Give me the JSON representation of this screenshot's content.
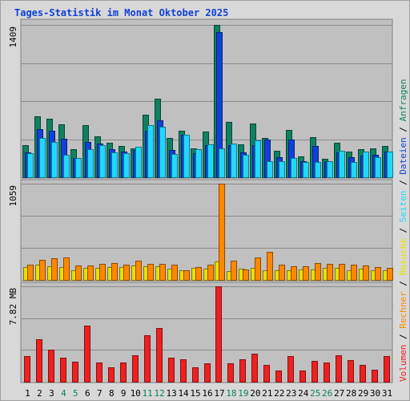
{
  "title": "Tages-Statistik im Monat Oktober 2025",
  "legend": {
    "items": [
      {
        "label": "Volumen",
        "color": "#ee2020"
      },
      {
        "label": "Rechner",
        "color": "#ff8800"
      },
      {
        "label": "Besuche",
        "color": "#e8e000"
      },
      {
        "label": "Seiten",
        "color": "#20d8ff"
      },
      {
        "label": "Dateien",
        "color": "#1040d8"
      },
      {
        "label": "Anfragen",
        "color": "#108060"
      }
    ],
    "separator": " / "
  },
  "chart_data": [
    {
      "type": "bar",
      "title": "Tages-Statistik im Monat Oktober 2025",
      "max_label": "1409",
      "ylim": [
        0,
        1409
      ],
      "categories": [
        "1",
        "2",
        "3",
        "4",
        "5",
        "6",
        "7",
        "8",
        "9",
        "10",
        "11",
        "12",
        "13",
        "14",
        "15",
        "16",
        "17",
        "18",
        "19",
        "20",
        "21",
        "22",
        "23",
        "24",
        "25",
        "26",
        "27",
        "28",
        "29",
        "30",
        "31"
      ],
      "weekend_days": [
        "4",
        "5",
        "11",
        "12",
        "18",
        "19",
        "25",
        "26"
      ],
      "series": [
        {
          "name": "Anfragen",
          "color": "#108060",
          "values": [
            300,
            560,
            545,
            490,
            260,
            485,
            375,
            320,
            290,
            265,
            575,
            725,
            360,
            430,
            265,
            420,
            1409,
            510,
            305,
            500,
            360,
            245,
            435,
            195,
            370,
            170,
            320,
            235,
            260,
            270,
            290
          ]
        },
        {
          "name": "Dateien",
          "color": "#1040d8",
          "values": [
            230,
            445,
            430,
            355,
            180,
            325,
            310,
            260,
            240,
            250,
            430,
            530,
            255,
            390,
            225,
            300,
            1340,
            300,
            230,
            300,
            350,
            185,
            350,
            150,
            290,
            150,
            230,
            185,
            200,
            205,
            235
          ]
        },
        {
          "name": "Seiten",
          "color": "#20d8ff",
          "values": [
            225,
            365,
            330,
            210,
            175,
            260,
            300,
            230,
            225,
            280,
            485,
            465,
            215,
            390,
            260,
            305,
            270,
            310,
            205,
            340,
            150,
            145,
            175,
            140,
            140,
            145,
            245,
            140,
            240,
            185,
            235
          ]
        }
      ]
    },
    {
      "type": "bar",
      "max_label": "1059",
      "ylim": [
        0,
        1059
      ],
      "categories": [
        "1",
        "2",
        "3",
        "4",
        "5",
        "6",
        "7",
        "8",
        "9",
        "10",
        "11",
        "12",
        "13",
        "14",
        "15",
        "16",
        "17",
        "18",
        "19",
        "20",
        "21",
        "22",
        "23",
        "24",
        "25",
        "26",
        "27",
        "28",
        "29",
        "30",
        "31"
      ],
      "series": [
        {
          "name": "Besuche",
          "color": "#e8e000",
          "values": [
            140,
            170,
            150,
            140,
            105,
            130,
            130,
            145,
            145,
            160,
            150,
            150,
            125,
            110,
            130,
            120,
            200,
            100,
            120,
            130,
            110,
            110,
            110,
            115,
            115,
            130,
            130,
            110,
            125,
            110,
            110
          ]
        },
        {
          "name": "Rechner",
          "color": "#ff8800",
          "values": [
            165,
            225,
            240,
            245,
            160,
            160,
            180,
            185,
            170,
            215,
            180,
            180,
            165,
            110,
            145,
            165,
            1059,
            210,
            115,
            245,
            305,
            165,
            150,
            150,
            185,
            180,
            180,
            165,
            155,
            140,
            130
          ]
        }
      ]
    },
    {
      "type": "bar",
      "max_label": "7.82 MB",
      "ylim": [
        0,
        7.82
      ],
      "categories": [
        "1",
        "2",
        "3",
        "4",
        "5",
        "6",
        "7",
        "8",
        "9",
        "10",
        "11",
        "12",
        "13",
        "14",
        "15",
        "16",
        "17",
        "18",
        "19",
        "20",
        "21",
        "22",
        "23",
        "24",
        "25",
        "26",
        "27",
        "28",
        "29",
        "30",
        "31"
      ],
      "series": [
        {
          "name": "Volumen",
          "color": "#ee2020",
          "values": [
            2.1,
            3.5,
            2.6,
            2.0,
            1.65,
            4.6,
            1.55,
            1.2,
            1.55,
            2.2,
            3.8,
            4.4,
            2.0,
            1.85,
            1.15,
            1.5,
            7.82,
            1.5,
            1.85,
            2.3,
            1.35,
            0.9,
            2.1,
            0.95,
            1.7,
            1.55,
            2.15,
            1.75,
            1.4,
            1.0,
            2.1
          ]
        }
      ]
    }
  ]
}
